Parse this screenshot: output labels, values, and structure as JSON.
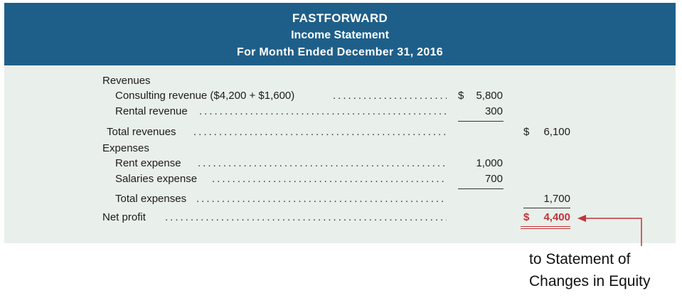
{
  "header": {
    "company": "FASTFORWARD",
    "statement": "Income Statement",
    "period": "For Month Ended December 31, 2016"
  },
  "revenues": {
    "label": "Revenues",
    "items": [
      {
        "label": "Consulting revenue ($4,200 + $1,600)",
        "currency": "$",
        "amount": "5,800"
      },
      {
        "label": "Rental revenue",
        "amount": "300"
      }
    ],
    "total_label": "Total revenues",
    "total_currency": "$",
    "total_amount": "6,100"
  },
  "expenses": {
    "label": "Expenses",
    "items": [
      {
        "label": "Rent expense",
        "amount": "1,000"
      },
      {
        "label": "Salaries expense",
        "amount": "700"
      }
    ],
    "total_label": "Total expenses",
    "total_amount": "1,700"
  },
  "net": {
    "label": "Net profit",
    "currency": "$",
    "amount": "4,400"
  },
  "note": {
    "line1": "to Statement of",
    "line2": "Changes in Equity"
  },
  "colors": {
    "header_bg": "#1e5f8a",
    "body_bg": "#e9efea",
    "net_profit": "#c0343b"
  }
}
